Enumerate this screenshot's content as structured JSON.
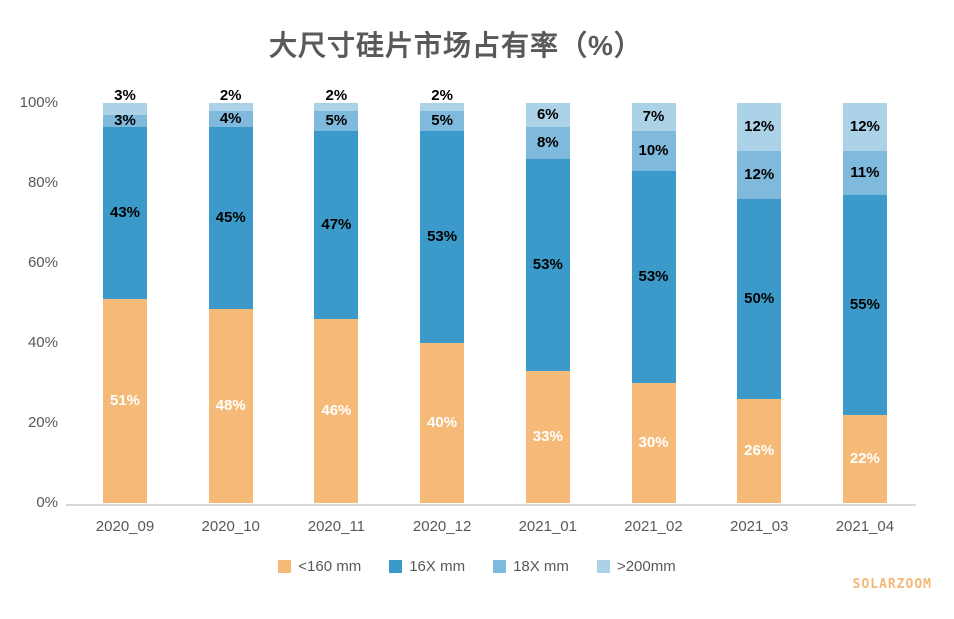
{
  "watermark": "SOLARZOOM",
  "chart_data": {
    "type": "bar",
    "stacked": true,
    "title": "大尺寸硅片市场占有率（%）",
    "categories": [
      "2020_09",
      "2020_10",
      "2020_11",
      "2020_12",
      "2021_01",
      "2021_02",
      "2021_03",
      "2021_04"
    ],
    "series": [
      {
        "name": "<160 mm",
        "color": "#F5BA78",
        "label_color": "#FFFFFF",
        "values": [
          51,
          48,
          46,
          40,
          33,
          30,
          26,
          22
        ]
      },
      {
        "name": "16X mm",
        "color": "#3B9AC9",
        "label_color": "#000000",
        "values": [
          43,
          45,
          47,
          53,
          53,
          53,
          50,
          55
        ]
      },
      {
        "name": "18X mm",
        "color": "#7FB9DB",
        "label_color": "#000000",
        "values": [
          3,
          4,
          5,
          5,
          8,
          10,
          12,
          11
        ]
      },
      {
        "name": ">200mm",
        "color": "#ABD2E7",
        "label_color": "#000000",
        "values": [
          3,
          2,
          2,
          2,
          6,
          7,
          12,
          12
        ]
      }
    ],
    "ylim": [
      0,
      100
    ],
    "ytick_labels": [
      "0%",
      "20%",
      "40%",
      "60%",
      "80%",
      "100%"
    ],
    "ytick_values": [
      0,
      20,
      40,
      60,
      80,
      100
    ],
    "xlabel": "",
    "ylabel": "",
    "legend_position": "bottom",
    "grid": false,
    "axis_color": "#D9D9D9",
    "text_color": "#595959"
  }
}
